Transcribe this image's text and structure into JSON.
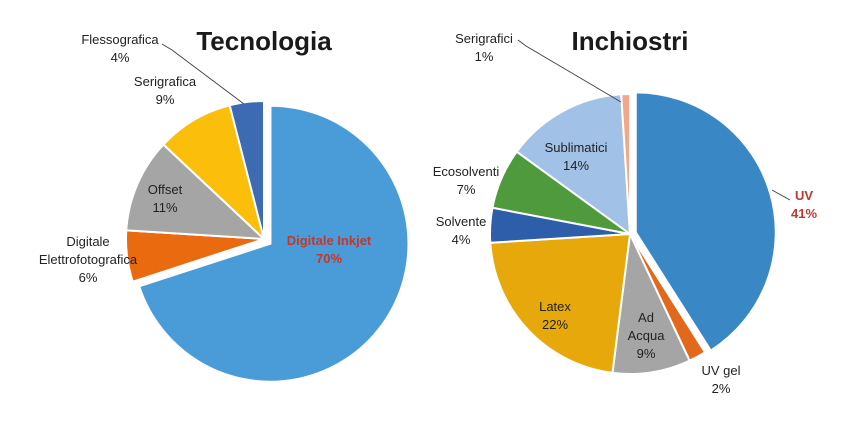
{
  "chart_data": [
    {
      "type": "pie",
      "title": "Tecnologia",
      "slices": [
        {
          "label": "Digitale Inkjet",
          "label_lines": [
            "Digitale Inkjet"
          ],
          "value": 70,
          "value_label": "70%",
          "color": "#4a9cd9",
          "exploded": true,
          "label_color": "#c0392b",
          "label_inside": true
        },
        {
          "label": "Digitale Elettrofotografica",
          "label_lines": [
            "Digitale",
            "Elettrofotografica"
          ],
          "value": 6,
          "value_label": "6%",
          "color": "#ea6a10",
          "exploded": false,
          "label_inside": false
        },
        {
          "label": "Offset",
          "label_lines": [
            "Offset"
          ],
          "value": 11,
          "value_label": "11%",
          "color": "#a5a5a5",
          "exploded": false,
          "label_inside": true
        },
        {
          "label": "Serigrafica",
          "label_lines": [
            "Serigrafica"
          ],
          "value": 9,
          "value_label": "9%",
          "color": "#fbbf0b",
          "exploded": false,
          "label_inside": false
        },
        {
          "label": "Flessografica",
          "label_lines": [
            "Flessografica"
          ],
          "value": 4,
          "value_label": "4%",
          "color": "#3d6bb3",
          "exploded": false,
          "label_inside": false
        }
      ]
    },
    {
      "type": "pie",
      "title": "Inchiostri",
      "slices": [
        {
          "label": "UV",
          "label_lines": [
            "UV"
          ],
          "value": 41,
          "value_label": "41%",
          "color": "#3a87c6",
          "exploded": true,
          "label_color": "#c0392b",
          "label_inside": false
        },
        {
          "label": "UV gel",
          "label_lines": [
            "UV gel"
          ],
          "value": 2,
          "value_label": "2%",
          "color": "#e2681b",
          "exploded": false,
          "label_inside": false
        },
        {
          "label": "Ad Acqua",
          "label_lines": [
            "Ad",
            "Acqua"
          ],
          "value": 9,
          "value_label": "9%",
          "color": "#a5a5a5",
          "exploded": false,
          "label_inside": true
        },
        {
          "label": "Latex",
          "label_lines": [
            "Latex"
          ],
          "value": 22,
          "value_label": "22%",
          "color": "#e6a80b",
          "exploded": false,
          "label_inside": true
        },
        {
          "label": "Solvente",
          "label_lines": [
            "Solvente"
          ],
          "value": 4,
          "value_label": "4%",
          "color": "#2e5eaa",
          "exploded": false,
          "label_inside": false
        },
        {
          "label": "Ecosolventi",
          "label_lines": [
            "Ecosolventi"
          ],
          "value": 7,
          "value_label": "7%",
          "color": "#4e9a3c",
          "exploded": false,
          "label_inside": false
        },
        {
          "label": "Sublimatici",
          "label_lines": [
            "Sublimatici"
          ],
          "value": 14,
          "value_label": "14%",
          "color": "#a2c1e7",
          "exploded": false,
          "label_inside": true
        },
        {
          "label": "Serigrafici",
          "label_lines": [
            "Serigrafici"
          ],
          "value": 1,
          "value_label": "1%",
          "color": "#f2a68a",
          "exploded": false,
          "label_inside": false
        }
      ]
    }
  ]
}
